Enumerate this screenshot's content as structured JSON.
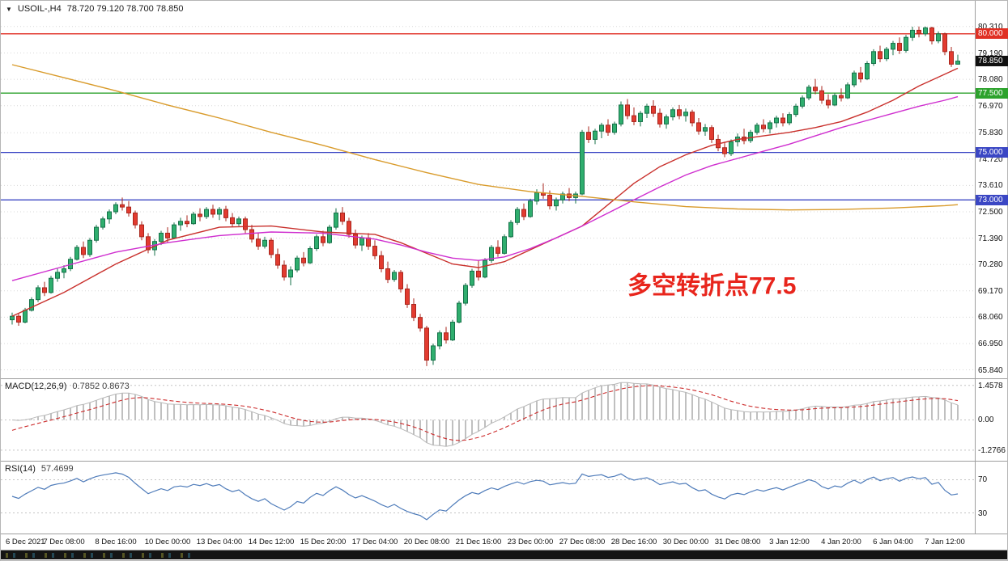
{
  "window": {
    "collapse_icon": "▼",
    "title_symbol": "USOIL-,H4",
    "title_ohlc": "78.720 79.120 78.700 78.850"
  },
  "chart_data": {
    "type": "candlestick",
    "symbol": "USOIL-",
    "timeframe": "H4",
    "ohlc_display": {
      "open": "78.720",
      "high": "79.120",
      "low": "78.700",
      "close": "78.850"
    },
    "price_range": [
      81.39,
      65.45
    ],
    "price_ticks": [
      "80.310",
      "79.190",
      "78.080",
      "76.970",
      "75.830",
      "74.720",
      "73.610",
      "72.500",
      "71.390",
      "70.280",
      "69.170",
      "68.060",
      "66.950",
      "65.840"
    ],
    "hlines": [
      {
        "price": 80.0,
        "label": "80.000",
        "color": "#e03024"
      },
      {
        "price": 77.5,
        "label": "77.500",
        "color": "#2ca22c"
      },
      {
        "price": 75.0,
        "label": "75.000",
        "color": "#3b47c4"
      },
      {
        "price": 73.0,
        "label": "73.000",
        "color": "#3b47c4"
      }
    ],
    "current_price": {
      "value": 78.85,
      "label": "78.850",
      "badge_color": "#101010"
    },
    "annotation": {
      "text": "多空转折点77.5",
      "color": "#e8251c",
      "x_index": 95,
      "price": 69.05,
      "font_size": 30
    },
    "time_labels": [
      [
        0,
        "6 Dec 2021"
      ],
      [
        8,
        "7 Dec 08:00"
      ],
      [
        16,
        "8 Dec 16:00"
      ],
      [
        24,
        "10 Dec 00:00"
      ],
      [
        32,
        "13 Dec 04:00"
      ],
      [
        40,
        "14 Dec 12:00"
      ],
      [
        48,
        "15 Dec 20:00"
      ],
      [
        56,
        "17 Dec 04:00"
      ],
      [
        64,
        "20 Dec 08:00"
      ],
      [
        72,
        "21 Dec 16:00"
      ],
      [
        80,
        "23 Dec 00:00"
      ],
      [
        88,
        "27 Dec 08:00"
      ],
      [
        96,
        "28 Dec 16:00"
      ],
      [
        104,
        "30 Dec 00:00"
      ],
      [
        112,
        "31 Dec 08:00"
      ],
      [
        120,
        "3 Jan 12:00"
      ],
      [
        128,
        "4 Jan 20:00"
      ],
      [
        136,
        "6 Jan 04:00"
      ],
      [
        144,
        "7 Jan 12:00"
      ]
    ],
    "candles": [
      [
        67.95,
        68.25,
        67.75,
        68.1
      ],
      [
        68.1,
        68.2,
        67.7,
        67.85
      ],
      [
        67.85,
        68.45,
        67.8,
        68.35
      ],
      [
        68.35,
        68.9,
        68.3,
        68.8
      ],
      [
        68.8,
        69.4,
        68.7,
        69.3
      ],
      [
        69.3,
        69.55,
        68.95,
        69.1
      ],
      [
        69.1,
        69.8,
        69.05,
        69.7
      ],
      [
        69.7,
        70.1,
        69.55,
        69.95
      ],
      [
        69.95,
        70.25,
        69.7,
        70.1
      ],
      [
        70.1,
        70.6,
        70.0,
        70.5
      ],
      [
        70.5,
        71.1,
        70.45,
        71.0
      ],
      [
        71.0,
        71.25,
        70.55,
        70.7
      ],
      [
        70.7,
        71.4,
        70.6,
        71.3
      ],
      [
        71.3,
        71.95,
        71.2,
        71.85
      ],
      [
        71.85,
        72.3,
        71.75,
        72.2
      ],
      [
        72.2,
        72.6,
        72.0,
        72.5
      ],
      [
        72.5,
        72.9,
        72.4,
        72.8
      ],
      [
        72.8,
        73.1,
        72.55,
        72.7
      ],
      [
        72.7,
        72.95,
        72.3,
        72.45
      ],
      [
        72.45,
        72.55,
        71.8,
        71.95
      ],
      [
        71.95,
        72.1,
        71.3,
        71.45
      ],
      [
        71.45,
        71.6,
        70.75,
        70.9
      ],
      [
        70.9,
        71.35,
        70.65,
        71.25
      ],
      [
        71.25,
        71.7,
        71.1,
        71.6
      ],
      [
        71.6,
        71.85,
        71.2,
        71.4
      ],
      [
        71.4,
        72.05,
        71.35,
        71.95
      ],
      [
        71.95,
        72.25,
        71.7,
        72.1
      ],
      [
        72.1,
        72.35,
        71.85,
        72.0
      ],
      [
        72.0,
        72.5,
        71.95,
        72.4
      ],
      [
        72.4,
        72.65,
        72.1,
        72.3
      ],
      [
        72.3,
        72.7,
        72.2,
        72.6
      ],
      [
        72.6,
        72.8,
        72.25,
        72.4
      ],
      [
        72.4,
        72.7,
        72.15,
        72.6
      ],
      [
        72.6,
        72.75,
        72.1,
        72.25
      ],
      [
        72.25,
        72.45,
        71.85,
        72.0
      ],
      [
        72.0,
        72.3,
        71.9,
        72.2
      ],
      [
        72.2,
        72.3,
        71.6,
        71.75
      ],
      [
        71.75,
        71.95,
        71.2,
        71.35
      ],
      [
        71.35,
        71.6,
        70.9,
        71.05
      ],
      [
        71.05,
        71.45,
        70.95,
        71.3
      ],
      [
        71.3,
        71.4,
        70.55,
        70.7
      ],
      [
        70.7,
        70.95,
        70.1,
        70.25
      ],
      [
        70.25,
        70.45,
        69.6,
        69.75
      ],
      [
        69.75,
        70.2,
        69.4,
        70.05
      ],
      [
        70.05,
        70.65,
        69.95,
        70.55
      ],
      [
        70.55,
        70.8,
        70.2,
        70.35
      ],
      [
        70.35,
        71.05,
        70.3,
        70.95
      ],
      [
        70.95,
        71.55,
        70.85,
        71.45
      ],
      [
        71.45,
        71.7,
        71.05,
        71.2
      ],
      [
        71.2,
        71.95,
        71.15,
        71.85
      ],
      [
        71.85,
        72.65,
        71.75,
        72.45
      ],
      [
        72.45,
        72.7,
        71.95,
        72.1
      ],
      [
        72.1,
        72.25,
        71.4,
        71.55
      ],
      [
        71.55,
        71.75,
        70.95,
        71.1
      ],
      [
        71.1,
        71.5,
        70.85,
        71.4
      ],
      [
        71.4,
        71.6,
        70.9,
        71.05
      ],
      [
        71.05,
        71.3,
        70.5,
        70.65
      ],
      [
        70.65,
        70.85,
        69.95,
        70.1
      ],
      [
        70.1,
        70.4,
        69.5,
        69.65
      ],
      [
        69.65,
        70.05,
        69.55,
        69.95
      ],
      [
        69.95,
        70.05,
        69.1,
        69.25
      ],
      [
        69.25,
        69.45,
        68.45,
        68.6
      ],
      [
        68.6,
        68.85,
        67.9,
        68.05
      ],
      [
        68.05,
        68.2,
        67.45,
        67.6
      ],
      [
        67.6,
        67.7,
        66.0,
        66.25
      ],
      [
        66.25,
        66.95,
        66.05,
        66.85
      ],
      [
        66.85,
        67.5,
        66.7,
        67.4
      ],
      [
        67.4,
        67.65,
        66.95,
        67.1
      ],
      [
        67.1,
        67.95,
        67.05,
        67.85
      ],
      [
        67.85,
        68.75,
        67.8,
        68.65
      ],
      [
        68.65,
        69.5,
        68.55,
        69.4
      ],
      [
        69.4,
        70.1,
        69.3,
        70.0
      ],
      [
        70.0,
        70.45,
        69.6,
        69.75
      ],
      [
        69.75,
        70.55,
        69.7,
        70.45
      ],
      [
        70.45,
        71.1,
        70.35,
        71.0
      ],
      [
        71.0,
        71.3,
        70.6,
        70.75
      ],
      [
        70.75,
        71.55,
        70.7,
        71.45
      ],
      [
        71.45,
        72.15,
        71.4,
        72.05
      ],
      [
        72.05,
        72.7,
        71.95,
        72.6
      ],
      [
        72.6,
        72.85,
        72.15,
        72.3
      ],
      [
        72.3,
        73.05,
        72.25,
        72.95
      ],
      [
        72.95,
        73.45,
        72.8,
        73.3
      ],
      [
        73.3,
        73.7,
        73.05,
        73.2
      ],
      [
        73.2,
        73.4,
        72.6,
        72.75
      ],
      [
        72.75,
        73.1,
        72.55,
        73.0
      ],
      [
        73.0,
        73.35,
        72.85,
        73.25
      ],
      [
        73.25,
        73.5,
        72.95,
        73.1
      ],
      [
        73.1,
        73.35,
        72.85,
        73.25
      ],
      [
        73.25,
        75.95,
        73.2,
        75.85
      ],
      [
        75.85,
        76.1,
        75.4,
        75.55
      ],
      [
        75.55,
        76.0,
        75.35,
        75.9
      ],
      [
        75.9,
        76.25,
        75.6,
        76.15
      ],
      [
        76.15,
        76.4,
        75.7,
        75.85
      ],
      [
        75.85,
        76.3,
        75.75,
        76.2
      ],
      [
        76.2,
        77.15,
        76.1,
        77.0
      ],
      [
        77.0,
        77.25,
        76.4,
        76.55
      ],
      [
        76.55,
        76.9,
        76.15,
        76.3
      ],
      [
        76.3,
        76.75,
        76.1,
        76.65
      ],
      [
        76.65,
        77.05,
        76.45,
        76.95
      ],
      [
        76.95,
        77.2,
        76.5,
        76.65
      ],
      [
        76.65,
        76.85,
        76.05,
        76.2
      ],
      [
        76.2,
        76.6,
        76.0,
        76.5
      ],
      [
        76.5,
        76.9,
        76.35,
        76.8
      ],
      [
        76.8,
        77.0,
        76.4,
        76.55
      ],
      [
        76.55,
        76.85,
        76.3,
        76.7
      ],
      [
        76.7,
        76.8,
        76.1,
        76.25
      ],
      [
        76.25,
        76.45,
        75.75,
        75.9
      ],
      [
        75.9,
        76.2,
        75.7,
        76.05
      ],
      [
        76.05,
        76.15,
        75.4,
        75.55
      ],
      [
        75.55,
        75.75,
        75.05,
        75.2
      ],
      [
        75.2,
        75.45,
        74.8,
        74.95
      ],
      [
        74.95,
        75.55,
        74.85,
        75.45
      ],
      [
        75.45,
        75.8,
        75.25,
        75.65
      ],
      [
        75.65,
        76.0,
        75.35,
        75.5
      ],
      [
        75.5,
        75.95,
        75.4,
        75.85
      ],
      [
        75.85,
        76.25,
        75.75,
        76.15
      ],
      [
        76.15,
        76.4,
        75.85,
        76.0
      ],
      [
        76.0,
        76.35,
        75.8,
        76.25
      ],
      [
        76.25,
        76.55,
        76.05,
        76.45
      ],
      [
        76.45,
        76.65,
        76.1,
        76.25
      ],
      [
        76.25,
        76.7,
        76.15,
        76.6
      ],
      [
        76.6,
        77.05,
        76.5,
        76.95
      ],
      [
        76.95,
        77.4,
        76.85,
        77.3
      ],
      [
        77.3,
        77.85,
        77.2,
        77.75
      ],
      [
        77.75,
        78.1,
        77.45,
        77.6
      ],
      [
        77.6,
        77.8,
        77.05,
        77.2
      ],
      [
        77.2,
        77.45,
        76.85,
        77.0
      ],
      [
        77.0,
        77.5,
        76.95,
        77.4
      ],
      [
        77.4,
        77.7,
        77.15,
        77.3
      ],
      [
        77.3,
        77.95,
        77.25,
        77.85
      ],
      [
        77.85,
        78.45,
        77.75,
        78.35
      ],
      [
        78.35,
        78.6,
        77.95,
        78.1
      ],
      [
        78.1,
        78.85,
        78.05,
        78.75
      ],
      [
        78.75,
        79.35,
        78.65,
        79.25
      ],
      [
        79.25,
        79.5,
        78.8,
        78.95
      ],
      [
        78.95,
        79.45,
        78.85,
        79.35
      ],
      [
        79.35,
        79.7,
        79.1,
        79.6
      ],
      [
        79.6,
        79.85,
        79.15,
        79.3
      ],
      [
        79.3,
        79.95,
        79.2,
        79.85
      ],
      [
        79.85,
        80.3,
        79.7,
        80.15
      ],
      [
        80.15,
        80.31,
        79.85,
        80.0
      ],
      [
        80.0,
        80.31,
        79.9,
        80.25
      ],
      [
        80.25,
        80.3,
        79.55,
        79.7
      ],
      [
        79.7,
        80.1,
        79.6,
        80.0
      ],
      [
        80.0,
        80.05,
        79.1,
        79.25
      ],
      [
        79.25,
        79.45,
        78.6,
        78.72
      ],
      [
        78.72,
        79.12,
        78.7,
        78.85
      ]
    ],
    "ma_lines": [
      {
        "name": "ma-red",
        "color": "#c9302c",
        "points": [
          [
            0,
            68.1
          ],
          [
            8,
            69.1
          ],
          [
            16,
            70.3
          ],
          [
            24,
            71.3
          ],
          [
            32,
            71.85
          ],
          [
            40,
            71.9
          ],
          [
            48,
            71.65
          ],
          [
            56,
            71.55
          ],
          [
            60,
            71.2
          ],
          [
            64,
            70.75
          ],
          [
            68,
            70.3
          ],
          [
            72,
            70.15
          ],
          [
            76,
            70.4
          ],
          [
            80,
            70.9
          ],
          [
            84,
            71.4
          ],
          [
            88,
            71.9
          ],
          [
            92,
            72.8
          ],
          [
            96,
            73.7
          ],
          [
            100,
            74.4
          ],
          [
            104,
            74.9
          ],
          [
            108,
            75.3
          ],
          [
            112,
            75.55
          ],
          [
            116,
            75.7
          ],
          [
            120,
            75.85
          ],
          [
            124,
            76.05
          ],
          [
            128,
            76.3
          ],
          [
            132,
            76.7
          ],
          [
            136,
            77.2
          ],
          [
            140,
            77.8
          ],
          [
            144,
            78.3
          ],
          [
            146,
            78.55
          ]
        ]
      },
      {
        "name": "ma-magenta",
        "color": "#cf2ecf",
        "points": [
          [
            0,
            69.6
          ],
          [
            8,
            70.2
          ],
          [
            16,
            70.8
          ],
          [
            24,
            71.2
          ],
          [
            32,
            71.5
          ],
          [
            40,
            71.65
          ],
          [
            48,
            71.6
          ],
          [
            56,
            71.35
          ],
          [
            60,
            71.1
          ],
          [
            64,
            70.8
          ],
          [
            68,
            70.55
          ],
          [
            72,
            70.45
          ],
          [
            76,
            70.6
          ],
          [
            80,
            70.95
          ],
          [
            84,
            71.4
          ],
          [
            88,
            71.9
          ],
          [
            92,
            72.45
          ],
          [
            96,
            73.0
          ],
          [
            100,
            73.55
          ],
          [
            104,
            74.05
          ],
          [
            108,
            74.45
          ],
          [
            112,
            74.75
          ],
          [
            116,
            75.05
          ],
          [
            120,
            75.35
          ],
          [
            124,
            75.7
          ],
          [
            128,
            76.05
          ],
          [
            132,
            76.35
          ],
          [
            136,
            76.65
          ],
          [
            140,
            76.95
          ],
          [
            144,
            77.2
          ],
          [
            146,
            77.35
          ]
        ]
      },
      {
        "name": "ma-orange",
        "color": "#d99b2b",
        "points": [
          [
            0,
            78.7
          ],
          [
            8,
            78.15
          ],
          [
            16,
            77.6
          ],
          [
            24,
            77.0
          ],
          [
            32,
            76.45
          ],
          [
            40,
            75.85
          ],
          [
            48,
            75.3
          ],
          [
            56,
            74.7
          ],
          [
            64,
            74.15
          ],
          [
            72,
            73.65
          ],
          [
            80,
            73.35
          ],
          [
            88,
            73.15
          ],
          [
            96,
            72.92
          ],
          [
            104,
            72.72
          ],
          [
            112,
            72.62
          ],
          [
            120,
            72.58
          ],
          [
            128,
            72.6
          ],
          [
            136,
            72.66
          ],
          [
            144,
            72.76
          ],
          [
            146,
            72.8
          ]
        ]
      }
    ],
    "indicators": {
      "macd": {
        "label": "MACD(12,26,9)",
        "values_text": "0.7852 0.8673",
        "fast": 12,
        "slow": 26,
        "signal": 9,
        "range": [
          -1.45,
          1.55
        ],
        "ticks": [
          {
            "v": 1.4578,
            "label": "1.4578"
          },
          {
            "v": 0,
            "label": "0.00"
          },
          {
            "v": -1.2766,
            "label": "-1.2766"
          }
        ],
        "hist_color": "#b9b9b9",
        "signal_color": "#cc2a2a"
      },
      "rsi": {
        "label": "RSI(14)",
        "value_text": "57.4699",
        "period": 14,
        "range": [
          12,
          88
        ],
        "levels": [
          {
            "v": 70,
            "label": "70"
          },
          {
            "v": 30,
            "label": "30"
          }
        ],
        "line_color": "#4f7cba"
      }
    },
    "colors": {
      "bull": "#2fae6e",
      "bull_border": "#17724a",
      "bear": "#e23b30",
      "bear_border": "#a8261d",
      "grid": "#d8d8d8"
    }
  }
}
